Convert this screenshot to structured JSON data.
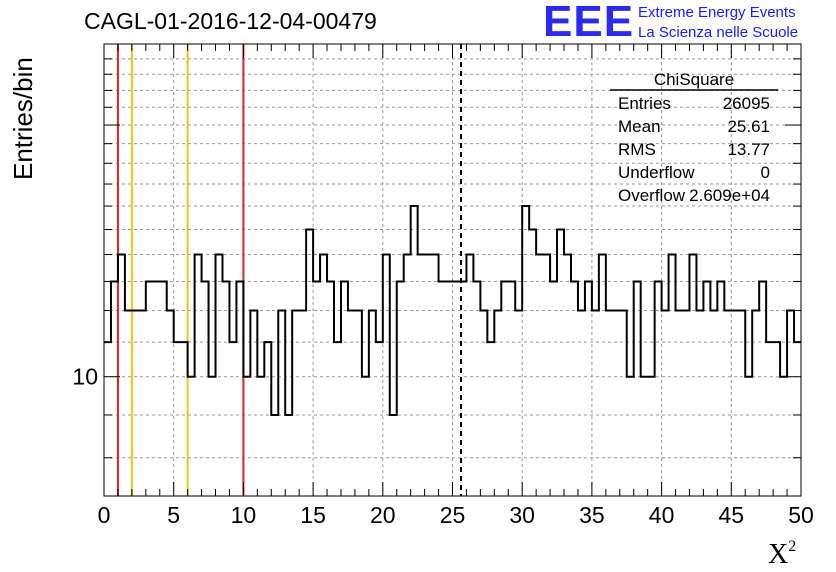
{
  "title": "CAGL-01-2016-12-04-00479",
  "logo": {
    "letters": "EEE",
    "line1": "Extreme Energy Events",
    "line2": "La Scienza nelle Scuole",
    "color": "#2b2bf0"
  },
  "stats": {
    "name": "ChiSquare",
    "rows": [
      {
        "key": "Entries",
        "value": "26095"
      },
      {
        "key": "Mean",
        "value": "25.61"
      },
      {
        "key": "RMS",
        "value": "13.77"
      },
      {
        "key": "Underflow",
        "value": "0"
      },
      {
        "key": "Overflow",
        "value": "2.609e+04"
      }
    ]
  },
  "chart_data": {
    "type": "histogram",
    "title": "CAGL-01-2016-12-04-00479",
    "xlabel": "X",
    "xlabel_sup": "2",
    "ylabel": "Entries/bin",
    "xlim": [
      0,
      50
    ],
    "ylim": [
      7.2,
      25
    ],
    "yscale": "log",
    "grid": true,
    "x_ticks": [
      0,
      5,
      10,
      15,
      20,
      25,
      30,
      35,
      40,
      45,
      50
    ],
    "y_tick_labels": [
      10
    ],
    "bin_width": 0.5,
    "values": [
      11,
      13,
      14,
      12,
      12,
      12,
      13,
      13,
      13,
      12,
      11,
      11,
      10,
      14,
      13,
      10,
      14,
      13,
      11,
      13,
      10,
      12,
      10,
      11,
      9,
      12,
      9,
      12,
      12,
      15,
      13,
      14,
      13,
      11,
      13,
      12,
      12,
      10,
      12,
      11,
      14,
      9,
      13,
      14,
      16,
      14,
      14,
      14,
      13,
      13,
      13,
      13,
      14,
      13,
      12,
      11,
      12,
      13,
      13,
      12,
      16,
      15,
      14,
      14,
      13,
      15,
      14,
      13,
      12,
      13,
      12,
      14,
      12,
      12,
      12,
      10,
      13,
      10,
      10,
      13,
      12,
      14,
      12,
      12,
      14,
      12,
      13,
      12,
      13,
      12,
      12,
      12,
      10,
      12,
      13,
      11,
      11,
      10,
      12,
      11
    ],
    "vlines": [
      {
        "x": 1,
        "color": "#e8211d",
        "style": "solid"
      },
      {
        "x": 2,
        "color": "#f0c419",
        "style": "solid"
      },
      {
        "x": 6,
        "color": "#f0c419",
        "style": "solid"
      },
      {
        "x": 10,
        "color": "#e8211d",
        "style": "solid"
      },
      {
        "x": 25.61,
        "color": "#000000",
        "style": "dashed"
      }
    ]
  }
}
